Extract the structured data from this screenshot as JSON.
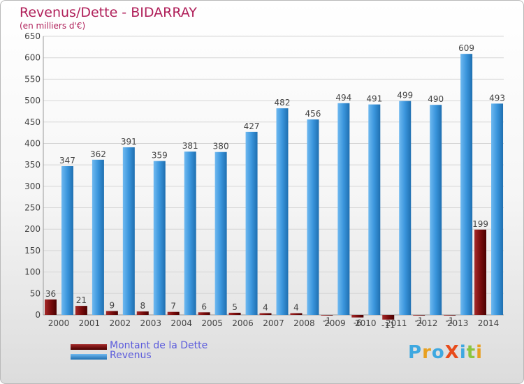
{
  "title": "Revenus/Dette - BIDARRAY",
  "subtitle": "(en milliers d'€)",
  "logo": {
    "text": "ProXiti",
    "letter_colors": [
      "#3ea8e0",
      "#e8a020",
      "#3ea8e0",
      "#e84b1b",
      "#3ea8e0",
      "#8bc53f",
      "#e8a020"
    ]
  },
  "legend": [
    {
      "label": "Montant de la Dette",
      "color": "#6b0000"
    },
    {
      "label": "Revenus",
      "color": "#3a95dc"
    }
  ],
  "chart_data": {
    "type": "bar",
    "title": "Revenus/Dette - BIDARRAY",
    "subtitle": "(en milliers d'€)",
    "categories": [
      "2000",
      "2001",
      "2002",
      "2003",
      "2004",
      "2005",
      "2006",
      "2007",
      "2008",
      "2009",
      "2010",
      "2011",
      "2012",
      "2013",
      "2014"
    ],
    "series": [
      {
        "name": "Montant de la Dette",
        "color": "#6b0000",
        "values": [
          36,
          21,
          9,
          8,
          7,
          6,
          5,
          4,
          4,
          -1,
          -6,
          -11,
          -1,
          -1,
          199
        ],
        "labels": [
          "36",
          "21",
          "9",
          "8",
          "7",
          "6",
          "5",
          "4",
          "4",
          "-1",
          "-6",
          "-11",
          "-1",
          "-1",
          "199"
        ]
      },
      {
        "name": "Revenus",
        "color": "#3a95dc",
        "values": [
          347,
          362,
          391,
          359,
          381,
          380,
          427,
          482,
          456,
          494,
          491,
          499,
          490,
          609,
          493
        ],
        "labels": [
          "347",
          "362",
          "391",
          "359",
          "381",
          "380",
          "427",
          "482",
          "456",
          "494",
          "491",
          "499",
          "490",
          "609",
          "493"
        ]
      }
    ],
    "ylim": [
      0,
      650
    ],
    "yticks": [
      0,
      50,
      100,
      150,
      200,
      250,
      300,
      350,
      400,
      450,
      500,
      550,
      600,
      650
    ],
    "grid": true,
    "legend_position": "bottom-left"
  }
}
